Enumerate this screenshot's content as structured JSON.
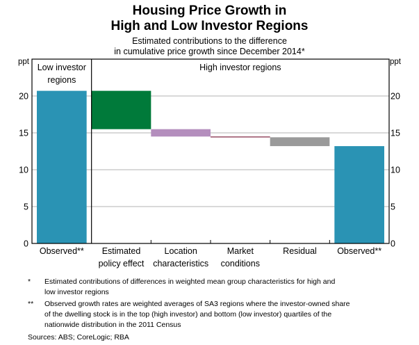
{
  "chart_data": {
    "type": "bar",
    "subtype": "waterfall",
    "title": "Housing Price Growth in High and Low Investor Regions",
    "title_lines": [
      "Housing Price Growth in",
      "High and Low Investor Regions"
    ],
    "subtitle_lines": [
      "Estimated contributions to the difference",
      "in cumulative price growth since December 2014*"
    ],
    "ylabel_left": "ppt",
    "ylabel_right": "ppt",
    "ylim": [
      0,
      25
    ],
    "yticks": [
      0,
      5,
      10,
      15,
      20
    ],
    "grid": true,
    "panels": [
      {
        "label": "Low investor regions",
        "label_lines": [
          "Low investor",
          "regions"
        ],
        "categories": [
          0
        ]
      },
      {
        "label": "High investor regions",
        "label_lines": [
          "High investor regions"
        ],
        "categories": [
          1,
          2,
          3,
          4,
          5
        ]
      }
    ],
    "categories": [
      "Observed**",
      "Estimated policy effect",
      "Location characteristics",
      "Market conditions",
      "Residual",
      "Observed**"
    ],
    "category_label_lines": [
      [
        "Observed**"
      ],
      [
        "Estimated",
        "policy effect"
      ],
      [
        "Location",
        "characteristics"
      ],
      [
        "Market",
        "conditions"
      ],
      [
        "Residual"
      ],
      [
        "Observed**"
      ]
    ],
    "bars": [
      {
        "category": "Observed** (Low investor)",
        "kind": "total",
        "start": 0,
        "end": 20.7,
        "color": "#2a93b4"
      },
      {
        "category": "Estimated policy effect",
        "kind": "change",
        "start": 20.7,
        "end": 15.5,
        "value": -5.2,
        "color": "#007a3a"
      },
      {
        "category": "Location characteristics",
        "kind": "change",
        "start": 15.5,
        "end": 14.5,
        "value": -1.0,
        "color": "#b48ebd"
      },
      {
        "category": "Market conditions",
        "kind": "change",
        "start": 14.5,
        "end": 14.4,
        "value": -0.1,
        "color": "#7b1f3c"
      },
      {
        "category": "Residual",
        "kind": "change",
        "start": 14.4,
        "end": 13.2,
        "value": -1.2,
        "color": "#9a9a9a"
      },
      {
        "category": "Observed** (High investor)",
        "kind": "total",
        "start": 0,
        "end": 13.2,
        "color": "#2a93b4"
      }
    ]
  },
  "notes": [
    {
      "mark": "*",
      "lines": [
        "Estimated contributions of differences in weighted mean group characteristics for high and",
        "low investor regions"
      ]
    },
    {
      "mark": "**",
      "lines": [
        "Observed growth rates are weighted averages of SA3 regions where the investor-owned share",
        "of the dwelling stock is in the top (high investor) and bottom (low investor) quartiles of the",
        "nationwide distribution in the 2011 Census"
      ]
    }
  ],
  "sources": "Sources: ABS; CoreLogic; RBA"
}
